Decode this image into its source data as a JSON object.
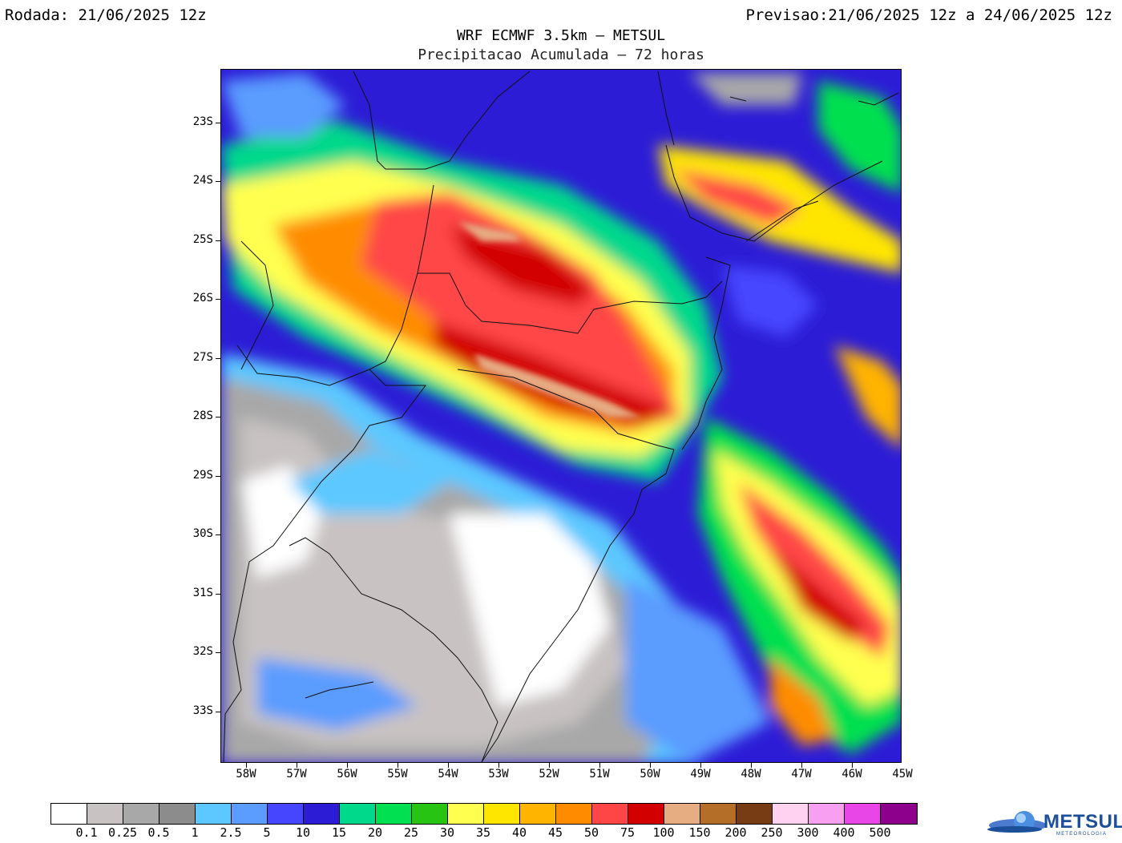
{
  "header": {
    "run_label": "Rodada: 21/06/2025 12z",
    "valid_label": "Previsao:21/06/2025 12z a 24/06/2025 12z",
    "title": "WRF ECMWF 3.5km – METSUL",
    "subtitle": "Precipitacao Acumulada – 72 horas"
  },
  "axes": {
    "lat_labels": [
      "23S",
      "24S",
      "25S",
      "26S",
      "27S",
      "28S",
      "29S",
      "30S",
      "31S",
      "32S",
      "33S"
    ],
    "lon_labels": [
      "58W",
      "57W",
      "56W",
      "55W",
      "54W",
      "53W",
      "52W",
      "51W",
      "50W",
      "49W",
      "48W",
      "47W",
      "46W",
      "45W"
    ],
    "lat_range": [
      -22,
      -34
    ],
    "lon_range": [
      -58.5,
      -45
    ]
  },
  "legend": {
    "labels": [
      "0.1",
      "0.25",
      "0.5",
      "1",
      "2.5",
      "5",
      "10",
      "15",
      "20",
      "25",
      "30",
      "35",
      "40",
      "45",
      "50",
      "75",
      "100",
      "150",
      "200",
      "250",
      "300",
      "400",
      "500"
    ],
    "colors": [
      "#ffffff",
      "#c8c2c2",
      "#a8a8a8",
      "#8c8c8c",
      "#5cc8ff",
      "#5a9cff",
      "#4646ff",
      "#2c1cd6",
      "#00d88c",
      "#00e050",
      "#28c414",
      "#ffff50",
      "#ffe600",
      "#ffb400",
      "#ff8c00",
      "#ff4646",
      "#d20000",
      "#e6ac82",
      "#b46e28",
      "#783c14",
      "#ffd2f0",
      "#f8a0f0",
      "#e846e6",
      "#8c008c"
    ]
  },
  "logo": {
    "name": "METSUL",
    "tagline": "METEOROLOGIA"
  }
}
